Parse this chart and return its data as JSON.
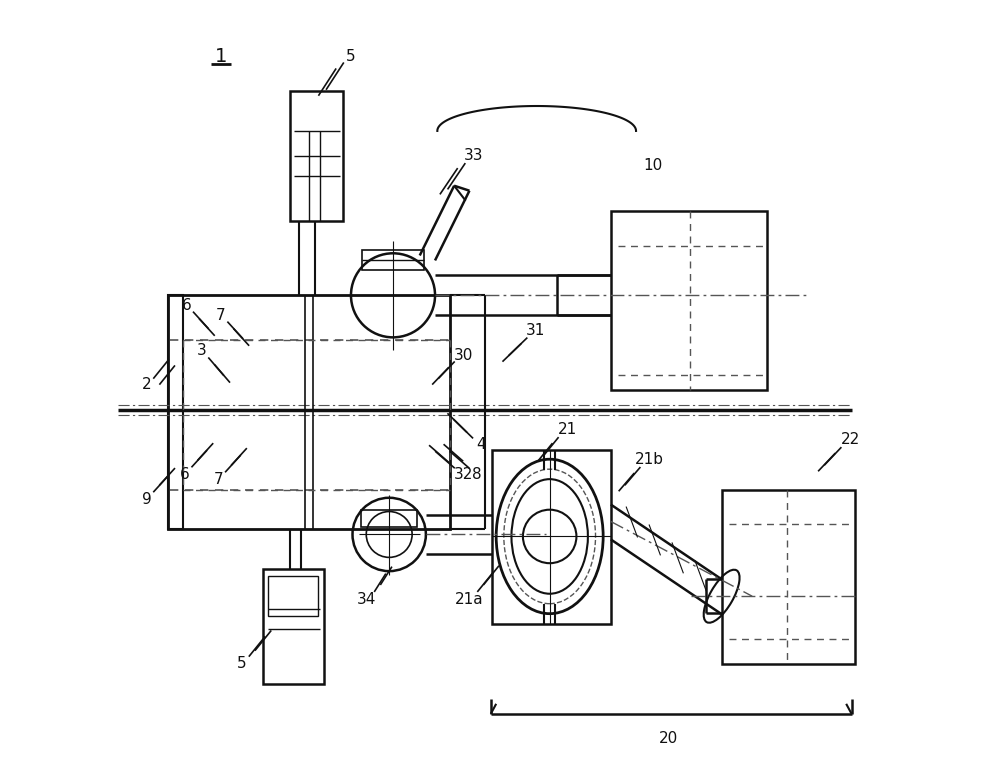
{
  "bg_color": "#ffffff",
  "lc": "#111111",
  "fig_width": 10.0,
  "fig_height": 7.67
}
